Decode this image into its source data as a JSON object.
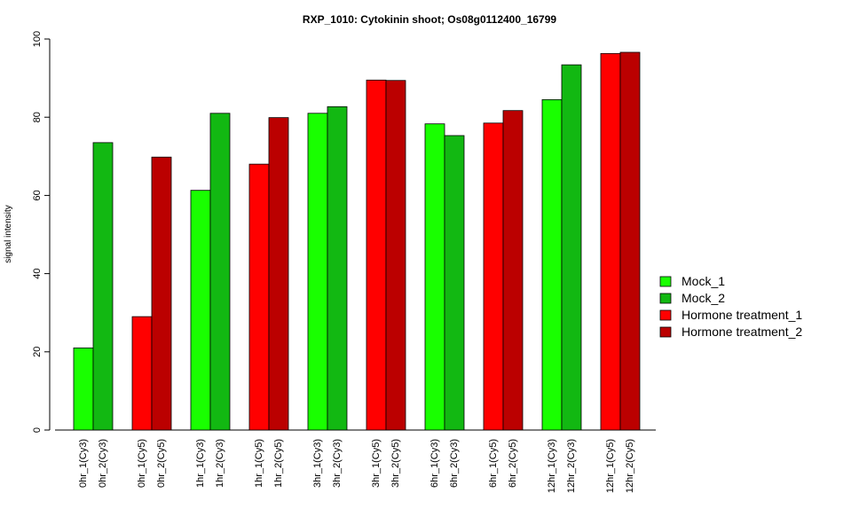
{
  "chart_data": {
    "type": "bar",
    "title": "RXP_1010: Cytokinin shoot; Os08g0112400_16799",
    "xlabel": "",
    "ylabel": "signal intensity",
    "ylim": [
      0,
      100
    ],
    "yticks": [
      0,
      20,
      40,
      60,
      80,
      100
    ],
    "grid": false,
    "legend_position": "right",
    "legend": [
      {
        "label": "Mock_1",
        "color": "#19ff00"
      },
      {
        "label": "Mock_2",
        "color": "#12b812"
      },
      {
        "label": "Hormone treatment_1",
        "color": "#ff0000"
      },
      {
        "label": "Hormone treatment_2",
        "color": "#bb0000"
      }
    ],
    "groups": [
      {
        "bars": [
          {
            "label": "0hr_1(Cy3)",
            "value": 21.0,
            "color": "#19ff00"
          },
          {
            "label": "0hr_2(Cy3)",
            "value": 73.5,
            "color": "#12b812"
          }
        ]
      },
      {
        "bars": [
          {
            "label": "0hr_1(Cy5)",
            "value": 29.0,
            "color": "#ff0000"
          },
          {
            "label": "0hr_2(Cy5)",
            "value": 69.8,
            "color": "#bb0000"
          }
        ]
      },
      {
        "bars": [
          {
            "label": "1hr_1(Cy3)",
            "value": 61.3,
            "color": "#19ff00"
          },
          {
            "label": "1hr_2(Cy3)",
            "value": 81.0,
            "color": "#12b812"
          }
        ]
      },
      {
        "bars": [
          {
            "label": "1hr_1(Cy5)",
            "value": 68.0,
            "color": "#ff0000"
          },
          {
            "label": "1hr_2(Cy5)",
            "value": 79.9,
            "color": "#bb0000"
          }
        ]
      },
      {
        "bars": [
          {
            "label": "3hr_1(Cy3)",
            "value": 81.0,
            "color": "#19ff00"
          },
          {
            "label": "3hr_2(Cy3)",
            "value": 82.7,
            "color": "#12b812"
          }
        ]
      },
      {
        "bars": [
          {
            "label": "3hr_1(Cy5)",
            "value": 89.5,
            "color": "#ff0000"
          },
          {
            "label": "3hr_2(Cy5)",
            "value": 89.4,
            "color": "#bb0000"
          }
        ]
      },
      {
        "bars": [
          {
            "label": "6hr_1(Cy3)",
            "value": 78.3,
            "color": "#19ff00"
          },
          {
            "label": "6hr_2(Cy3)",
            "value": 75.3,
            "color": "#12b812"
          }
        ]
      },
      {
        "bars": [
          {
            "label": "6hr_1(Cy5)",
            "value": 78.5,
            "color": "#ff0000"
          },
          {
            "label": "6hr_2(Cy5)",
            "value": 81.7,
            "color": "#bb0000"
          }
        ]
      },
      {
        "bars": [
          {
            "label": "12hr_1(Cy3)",
            "value": 84.5,
            "color": "#19ff00"
          },
          {
            "label": "12hr_2(Cy3)",
            "value": 93.4,
            "color": "#12b812"
          }
        ]
      },
      {
        "bars": [
          {
            "label": "12hr_1(Cy5)",
            "value": 96.3,
            "color": "#ff0000"
          },
          {
            "label": "12hr_2(Cy5)",
            "value": 96.6,
            "color": "#bb0000"
          }
        ]
      }
    ]
  }
}
